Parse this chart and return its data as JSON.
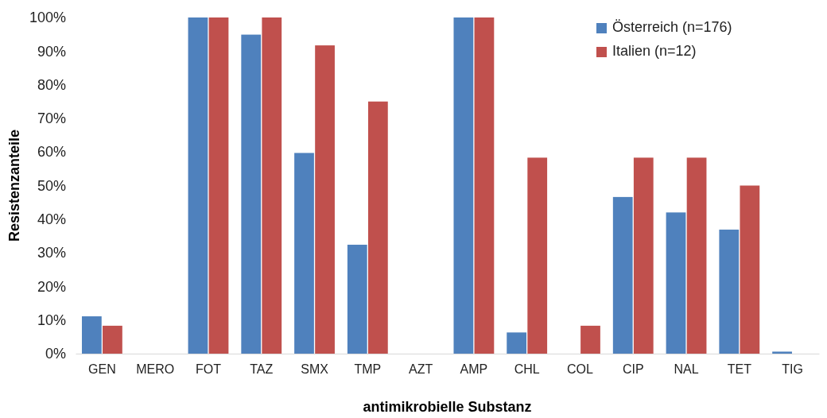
{
  "chart_data": {
    "type": "bar",
    "xlabel": "antimikrobielle Substanz",
    "ylabel": "Resistenzanteile",
    "categories": [
      "GEN",
      "MERO",
      "FOT",
      "TAZ",
      "SMX",
      "TMP",
      "AZT",
      "AMP",
      "CHL",
      "COL",
      "CIP",
      "NAL",
      "TET",
      "TIG"
    ],
    "series": [
      {
        "name": "Österreich (n=176)",
        "color": "#4f81bd",
        "values": [
          11.1,
          0,
          100,
          94.9,
          59.7,
          32.4,
          0,
          100,
          6.3,
          0,
          46.6,
          42,
          36.9,
          0.6
        ]
      },
      {
        "name": "Italien (n=12)",
        "color": "#c0504d",
        "values": [
          8.3,
          0,
          100,
          100,
          91.7,
          75,
          0,
          100,
          58.3,
          8.3,
          58.3,
          58.3,
          50,
          0
        ]
      }
    ],
    "ylim": [
      0,
      100
    ],
    "yticks": [
      {
        "value": 0,
        "label": "0%"
      },
      {
        "value": 10,
        "label": "10%"
      },
      {
        "value": 20,
        "label": "20%"
      },
      {
        "value": 30,
        "label": "30%"
      },
      {
        "value": 40,
        "label": "40%"
      },
      {
        "value": 50,
        "label": "50%"
      },
      {
        "value": 60,
        "label": "60%"
      },
      {
        "value": 70,
        "label": "70%"
      },
      {
        "value": 80,
        "label": "80%"
      },
      {
        "value": 90,
        "label": "90%"
      },
      {
        "value": 100,
        "label": "100%"
      }
    ],
    "legend": "top right"
  }
}
